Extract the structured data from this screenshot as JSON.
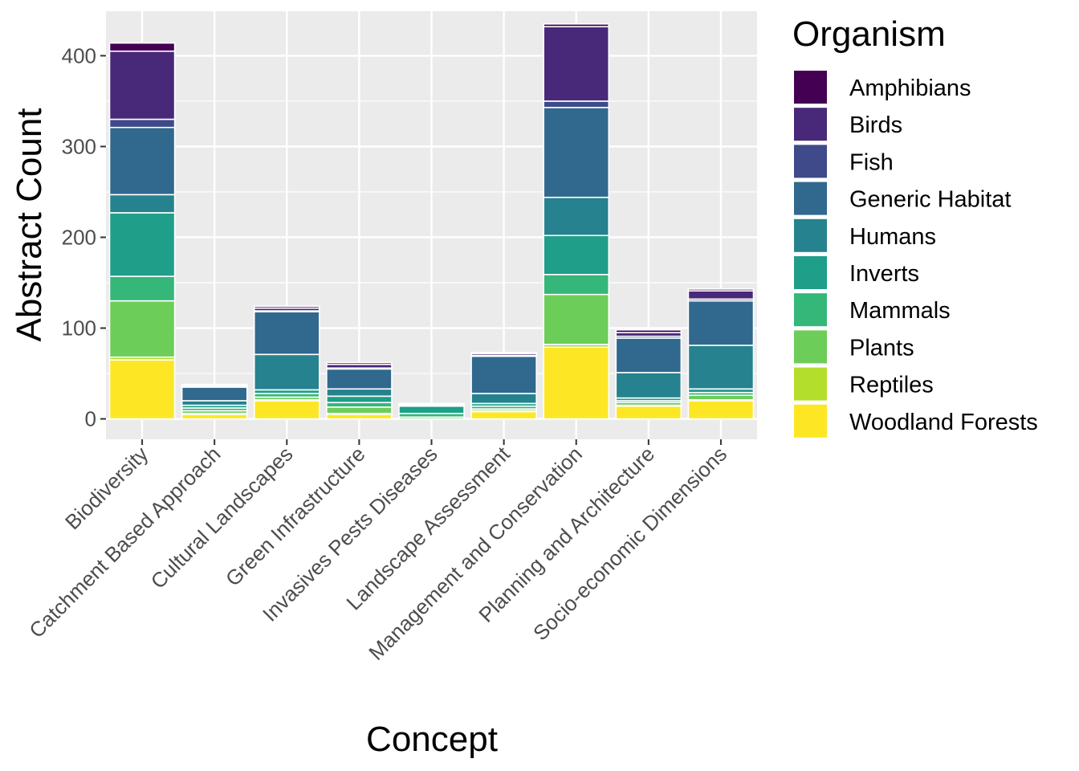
{
  "chart_data": {
    "type": "bar",
    "stacked": true,
    "xlabel": "Concept",
    "ylabel": "Abstract Count",
    "ylim": [
      0,
      450
    ],
    "yticks": [
      0,
      100,
      200,
      300,
      400
    ],
    "grid": true,
    "legend_title": "Organism",
    "legend_position": "right",
    "categories": [
      "Biodiversity",
      "Catchment Based Approach",
      "Cultural Landscapes",
      "Green Infrastructure",
      "Invasives Pests Diseases",
      "Landscape Assessment",
      "Management and Conservation",
      "Planning and Architecture",
      "Socio-economic Dimensions"
    ],
    "series": [
      {
        "name": "Amphibians",
        "color": "#440154",
        "values": [
          9,
          1,
          2,
          2,
          0,
          1,
          3,
          3,
          2
        ]
      },
      {
        "name": "Birds",
        "color": "#482878",
        "values": [
          75,
          1,
          3,
          4,
          1,
          2,
          82,
          4,
          9
        ]
      },
      {
        "name": "Fish",
        "color": "#3E4A89",
        "values": [
          9,
          1,
          1,
          1,
          0,
          1,
          7,
          2,
          2
        ]
      },
      {
        "name": "Generic Habitat",
        "color": "#31688E",
        "values": [
          74,
          15,
          47,
          22,
          1,
          41,
          99,
          38,
          49
        ]
      },
      {
        "name": "Humans",
        "color": "#26828E",
        "values": [
          20,
          5,
          39,
          8,
          1,
          11,
          42,
          28,
          48
        ]
      },
      {
        "name": "Inverts",
        "color": "#1F9E89",
        "values": [
          70,
          3,
          4,
          7,
          8,
          3,
          43,
          3,
          4
        ]
      },
      {
        "name": "Mammals",
        "color": "#35B779",
        "values": [
          27,
          3,
          4,
          5,
          4,
          3,
          22,
          2,
          3
        ]
      },
      {
        "name": "Plants",
        "color": "#6DCD59",
        "values": [
          62,
          3,
          3,
          7,
          2,
          2,
          55,
          3,
          5
        ]
      },
      {
        "name": "Reptiles",
        "color": "#B4DE2C",
        "values": [
          3,
          1,
          1,
          1,
          0,
          1,
          3,
          1,
          1
        ]
      },
      {
        "name": "Woodland Forests",
        "color": "#FDE725",
        "values": [
          65,
          5,
          20,
          5,
          0,
          8,
          79,
          14,
          20
        ]
      }
    ]
  }
}
